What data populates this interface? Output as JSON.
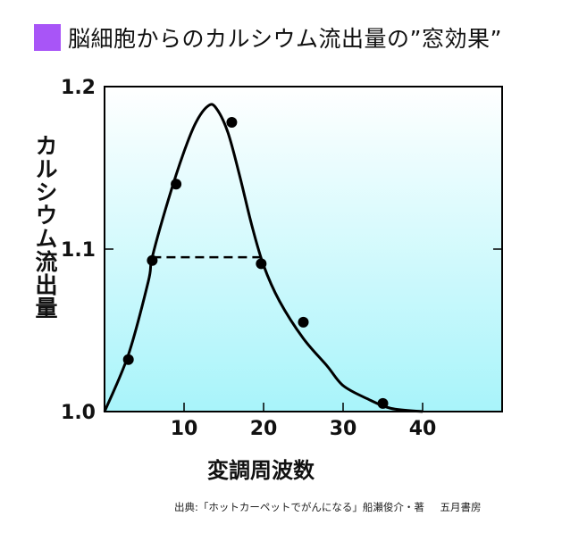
{
  "title": "脳細胞からのカルシウム流出量の”窓効果”",
  "source": {
    "citation": "出典:「ホットカーペットでがんになる」船瀬俊介・著",
    "publisher": "五月書房"
  },
  "colors": {
    "title_marker": "#a855f7",
    "plot_bg_top": "#ffffff",
    "plot_bg_bottom": "#a8f4fa"
  },
  "chart_data": {
    "type": "scatter",
    "xlabel": "変調周波数",
    "ylabel": "カルシウム流出量",
    "xlim": [
      0,
      50
    ],
    "ylim": [
      1.0,
      1.2
    ],
    "x_ticks": [
      {
        "value": 10,
        "label": "10"
      },
      {
        "value": 20,
        "label": "20"
      },
      {
        "value": 30,
        "label": "30"
      },
      {
        "value": 40,
        "label": "40"
      }
    ],
    "y_ticks": [
      {
        "value": 1.0,
        "label": "1.0"
      },
      {
        "value": 1.1,
        "label": "1.1"
      },
      {
        "value": 1.2,
        "label": "1.2"
      }
    ],
    "points": [
      {
        "x": 3,
        "y": 1.032
      },
      {
        "x": 6,
        "y": 1.093
      },
      {
        "x": 9,
        "y": 1.14
      },
      {
        "x": 16,
        "y": 1.178
      },
      {
        "x": 19.7,
        "y": 1.091
      },
      {
        "x": 25,
        "y": 1.055
      },
      {
        "x": 35,
        "y": 1.005
      }
    ],
    "curve": [
      {
        "x": 0,
        "y": 1.0
      },
      {
        "x": 3,
        "y": 1.035
      },
      {
        "x": 5.5,
        "y": 1.08
      },
      {
        "x": 6,
        "y": 1.095
      },
      {
        "x": 8,
        "y": 1.13
      },
      {
        "x": 10,
        "y": 1.16
      },
      {
        "x": 11.5,
        "y": 1.178
      },
      {
        "x": 13,
        "y": 1.188
      },
      {
        "x": 14,
        "y": 1.187
      },
      {
        "x": 15.5,
        "y": 1.172
      },
      {
        "x": 17,
        "y": 1.145
      },
      {
        "x": 18.5,
        "y": 1.115
      },
      {
        "x": 20,
        "y": 1.09
      },
      {
        "x": 22,
        "y": 1.068
      },
      {
        "x": 25,
        "y": 1.045
      },
      {
        "x": 28,
        "y": 1.028
      },
      {
        "x": 30,
        "y": 1.016
      },
      {
        "x": 33,
        "y": 1.008
      },
      {
        "x": 36,
        "y": 1.002
      },
      {
        "x": 40,
        "y": 1.0
      }
    ],
    "window_line": {
      "x_start": 6,
      "x_end": 19.7,
      "y": 1.095
    }
  }
}
